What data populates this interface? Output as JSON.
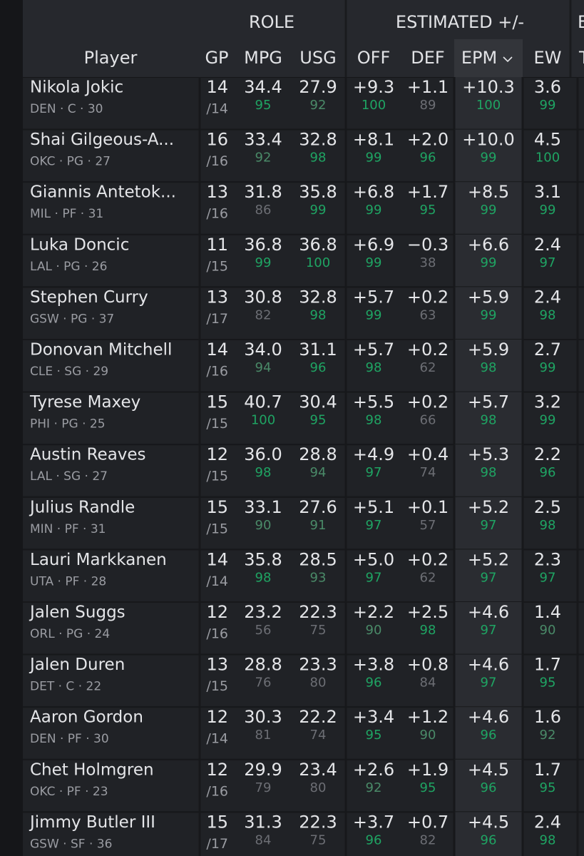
{
  "header": {
    "groups": [
      "ROLE",
      "ESTIMATED +/-",
      "E"
    ],
    "columns": [
      "Player",
      "GP",
      "MPG",
      "USG",
      "OFF",
      "DEF",
      "EPM",
      "EW",
      "T"
    ]
  },
  "table": {
    "rows": [
      {
        "player": "Nikola Jokic",
        "meta": "DEN · C · 30",
        "gp": 14,
        "gp_total": "/14",
        "mpg": "34.4",
        "mpg_pct": 95,
        "usg": "27.9",
        "usg_pct": 92,
        "off": "+9.3",
        "off_pct": 100,
        "def": "+1.1",
        "def_pct": 89,
        "epm": "+10.3",
        "epm_pct": 100,
        "ew": "3.6",
        "ew_pct": 99
      },
      {
        "player": "Shai Gilgeous-A...",
        "meta": "OKC · PG · 27",
        "gp": 16,
        "gp_total": "/16",
        "mpg": "33.4",
        "mpg_pct": 92,
        "usg": "32.8",
        "usg_pct": 98,
        "off": "+8.1",
        "off_pct": 99,
        "def": "+2.0",
        "def_pct": 96,
        "epm": "+10.0",
        "epm_pct": 99,
        "ew": "4.5",
        "ew_pct": 100
      },
      {
        "player": "Giannis Antetok...",
        "meta": "MIL · PF · 31",
        "gp": 13,
        "gp_total": "/16",
        "mpg": "31.8",
        "mpg_pct": 86,
        "usg": "35.8",
        "usg_pct": 99,
        "off": "+6.8",
        "off_pct": 99,
        "def": "+1.7",
        "def_pct": 95,
        "epm": "+8.5",
        "epm_pct": 99,
        "ew": "3.1",
        "ew_pct": 99
      },
      {
        "player": "Luka Doncic",
        "meta": "LAL · PG · 26",
        "gp": 11,
        "gp_total": "/15",
        "mpg": "36.8",
        "mpg_pct": 99,
        "usg": "36.8",
        "usg_pct": 100,
        "off": "+6.9",
        "off_pct": 99,
        "def": "−0.3",
        "def_pct": 38,
        "epm": "+6.6",
        "epm_pct": 99,
        "ew": "2.4",
        "ew_pct": 97
      },
      {
        "player": "Stephen Curry",
        "meta": "GSW · PG · 37",
        "gp": 13,
        "gp_total": "/17",
        "mpg": "30.8",
        "mpg_pct": 82,
        "usg": "32.8",
        "usg_pct": 98,
        "off": "+5.7",
        "off_pct": 99,
        "def": "+0.2",
        "def_pct": 63,
        "epm": "+5.9",
        "epm_pct": 99,
        "ew": "2.4",
        "ew_pct": 98
      },
      {
        "player": "Donovan Mitchell",
        "meta": "CLE · SG · 29",
        "gp": 14,
        "gp_total": "/16",
        "mpg": "34.0",
        "mpg_pct": 94,
        "usg": "31.1",
        "usg_pct": 96,
        "off": "+5.7",
        "off_pct": 98,
        "def": "+0.2",
        "def_pct": 62,
        "epm": "+5.9",
        "epm_pct": 98,
        "ew": "2.7",
        "ew_pct": 99
      },
      {
        "player": "Tyrese Maxey",
        "meta": "PHI · PG · 25",
        "gp": 15,
        "gp_total": "/15",
        "mpg": "40.7",
        "mpg_pct": 100,
        "usg": "30.4",
        "usg_pct": 95,
        "off": "+5.5",
        "off_pct": 98,
        "def": "+0.2",
        "def_pct": 66,
        "epm": "+5.7",
        "epm_pct": 98,
        "ew": "3.2",
        "ew_pct": 99
      },
      {
        "player": "Austin Reaves",
        "meta": "LAL · SG · 27",
        "gp": 12,
        "gp_total": "/15",
        "mpg": "36.0",
        "mpg_pct": 98,
        "usg": "28.8",
        "usg_pct": 94,
        "off": "+4.9",
        "off_pct": 97,
        "def": "+0.4",
        "def_pct": 74,
        "epm": "+5.3",
        "epm_pct": 98,
        "ew": "2.2",
        "ew_pct": 96
      },
      {
        "player": "Julius Randle",
        "meta": "MIN · PF · 31",
        "gp": 15,
        "gp_total": "/15",
        "mpg": "33.1",
        "mpg_pct": 90,
        "usg": "27.6",
        "usg_pct": 91,
        "off": "+5.1",
        "off_pct": 97,
        "def": "+0.1",
        "def_pct": 57,
        "epm": "+5.2",
        "epm_pct": 97,
        "ew": "2.5",
        "ew_pct": 98
      },
      {
        "player": "Lauri Markkanen",
        "meta": "UTA · PF · 28",
        "gp": 14,
        "gp_total": "/14",
        "mpg": "35.8",
        "mpg_pct": 98,
        "usg": "28.5",
        "usg_pct": 93,
        "off": "+5.0",
        "off_pct": 97,
        "def": "+0.2",
        "def_pct": 62,
        "epm": "+5.2",
        "epm_pct": 97,
        "ew": "2.3",
        "ew_pct": 97
      },
      {
        "player": "Jalen Suggs",
        "meta": "ORL · PG · 24",
        "gp": 12,
        "gp_total": "/16",
        "mpg": "23.2",
        "mpg_pct": 56,
        "usg": "22.3",
        "usg_pct": 75,
        "off": "+2.2",
        "off_pct": 90,
        "def": "+2.5",
        "def_pct": 98,
        "epm": "+4.6",
        "epm_pct": 97,
        "ew": "1.4",
        "ew_pct": 90
      },
      {
        "player": "Jalen Duren",
        "meta": "DET · C · 22",
        "gp": 13,
        "gp_total": "/15",
        "mpg": "28.8",
        "mpg_pct": 76,
        "usg": "23.3",
        "usg_pct": 80,
        "off": "+3.8",
        "off_pct": 96,
        "def": "+0.8",
        "def_pct": 84,
        "epm": "+4.6",
        "epm_pct": 97,
        "ew": "1.7",
        "ew_pct": 95
      },
      {
        "player": "Aaron Gordon",
        "meta": "DEN · PF · 30",
        "gp": 12,
        "gp_total": "/14",
        "mpg": "30.3",
        "mpg_pct": 81,
        "usg": "22.2",
        "usg_pct": 74,
        "off": "+3.4",
        "off_pct": 95,
        "def": "+1.2",
        "def_pct": 90,
        "epm": "+4.6",
        "epm_pct": 96,
        "ew": "1.6",
        "ew_pct": 92
      },
      {
        "player": "Chet Holmgren",
        "meta": "OKC · PF · 23",
        "gp": 12,
        "gp_total": "/16",
        "mpg": "29.9",
        "mpg_pct": 79,
        "usg": "23.4",
        "usg_pct": 80,
        "off": "+2.6",
        "off_pct": 92,
        "def": "+1.9",
        "def_pct": 95,
        "epm": "+4.5",
        "epm_pct": 96,
        "ew": "1.7",
        "ew_pct": 95
      },
      {
        "player": "Jimmy Butler III",
        "meta": "GSW · SF · 36",
        "gp": 15,
        "gp_total": "/17",
        "mpg": "31.3",
        "mpg_pct": 84,
        "usg": "22.3",
        "usg_pct": 75,
        "off": "+3.7",
        "off_pct": 96,
        "def": "+0.7",
        "def_pct": 82,
        "epm": "+4.5",
        "epm_pct": 96,
        "ew": "2.4",
        "ew_pct": 98
      }
    ]
  }
}
